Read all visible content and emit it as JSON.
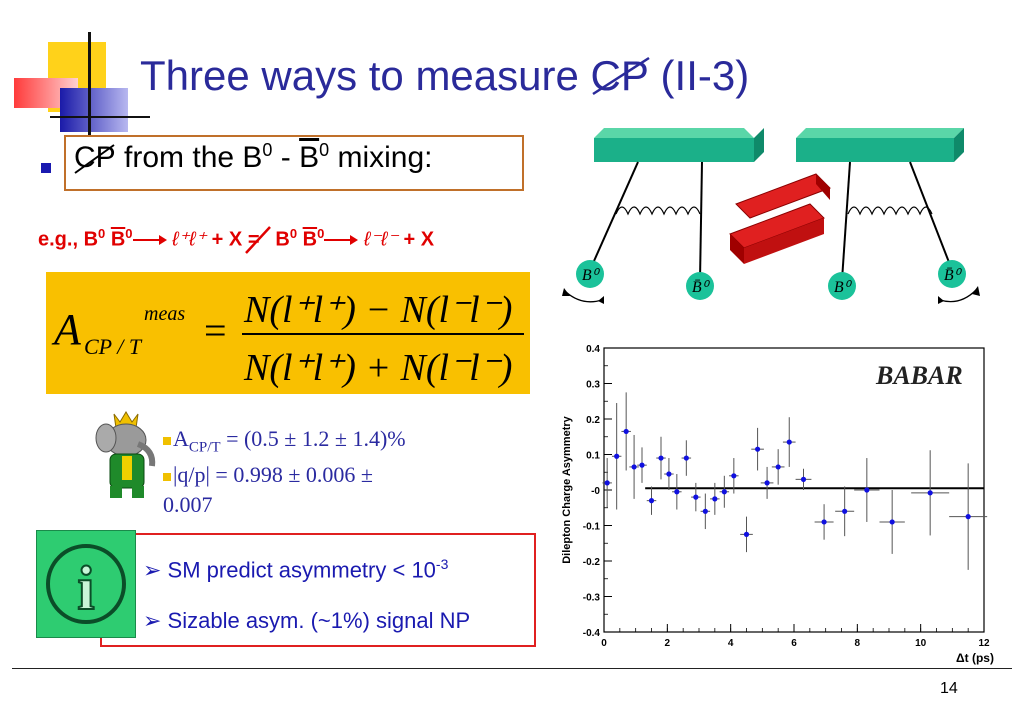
{
  "slide": {
    "title_prefix": "Three ways to measure ",
    "title_cp": "CP",
    "title_suffix": " (II-3)",
    "page_number": "14"
  },
  "mixing": {
    "cp": "CP",
    "text1": " from the B",
    "sup0a": "0",
    "dash": " - ",
    "bbar": "B",
    "sup0b": "0",
    "text2": " mixing:"
  },
  "example": {
    "eg": "e.g., ",
    "b0": "B",
    "b0bar": "B",
    "sup": "0",
    "ll_plus": "ℓ⁺ℓ⁺",
    "plus_x": " + X ",
    "ll_minus": "ℓ⁻ℓ⁻",
    "plus_x2": " + X"
  },
  "formula": {
    "A": "A",
    "sub": "CP / T",
    "sup": "meas",
    "eq": "=",
    "num": "N(l⁺l⁺) − N(l⁻l⁻)",
    "den": "N(l⁺l⁺) + N(l⁻l⁻)"
  },
  "results": {
    "r1_A": "A",
    "r1_sub": "CP/T",
    "r1_val": " = (0.5 ± 1.2 ± 1.4)%",
    "r2": "|q/p| = 0.998 ± 0.006 ±",
    "r3": "0.007"
  },
  "info": {
    "sm_text": "SM predict asymmetry < 10",
    "sm_sup": "-3",
    "np_text": "Sizable asym. (~1%) signal NP",
    "icon_letter": "i"
  },
  "diagram": {
    "labels": [
      "B⁰",
      "B̄⁰",
      "B⁰",
      "B̄⁰"
    ]
  },
  "chart_data": {
    "type": "scatter",
    "ylabel": "Dilepton Charge Asymmetry",
    "xlabel": "Δt (ps)",
    "logo": "BABAR",
    "xlim": [
      0,
      12
    ],
    "ylim": [
      -0.4,
      0.4
    ],
    "xticks": [
      "0",
      "2",
      "4",
      "6",
      "8",
      "10",
      "12"
    ],
    "yticks": [
      "0.4",
      "0.3",
      "0.2",
      "0.1",
      "-0",
      "-0.1",
      "-0.2",
      "-0.3",
      "-0.4"
    ],
    "fit_line": {
      "x": [
        1.3,
        12
      ],
      "y": [
        0.005,
        0.005
      ]
    },
    "points": [
      {
        "x": 0.1,
        "y": 0.02,
        "ey": 0.07
      },
      {
        "x": 0.4,
        "y": 0.095,
        "ey": 0.15
      },
      {
        "x": 0.7,
        "y": 0.165,
        "ey": 0.11
      },
      {
        "x": 0.95,
        "y": 0.065,
        "ey": 0.09
      },
      {
        "x": 1.2,
        "y": 0.07,
        "ey": 0.05
      },
      {
        "x": 1.5,
        "y": -0.03,
        "ey": 0.04
      },
      {
        "x": 1.8,
        "y": 0.09,
        "ey": 0.06
      },
      {
        "x": 2.05,
        "y": 0.045,
        "ey": 0.045
      },
      {
        "x": 2.3,
        "y": -0.005,
        "ey": 0.05
      },
      {
        "x": 2.6,
        "y": 0.09,
        "ey": 0.05
      },
      {
        "x": 2.9,
        "y": -0.02,
        "ey": 0.04
      },
      {
        "x": 3.2,
        "y": -0.06,
        "ey": 0.05
      },
      {
        "x": 3.5,
        "y": -0.025,
        "ey": 0.045
      },
      {
        "x": 3.8,
        "y": -0.005,
        "ey": 0.045
      },
      {
        "x": 4.1,
        "y": 0.04,
        "ey": 0.05
      },
      {
        "x": 4.5,
        "y": -0.125,
        "ey": 0.05
      },
      {
        "x": 4.85,
        "y": 0.115,
        "ey": 0.06
      },
      {
        "x": 5.15,
        "y": 0.02,
        "ey": 0.045
      },
      {
        "x": 5.5,
        "y": 0.065,
        "ey": 0.05
      },
      {
        "x": 5.85,
        "y": 0.135,
        "ey": 0.07
      },
      {
        "x": 6.3,
        "y": 0.03,
        "ey": 0.03
      },
      {
        "x": 6.95,
        "y": -0.09,
        "ey": 0.05
      },
      {
        "x": 7.6,
        "y": -0.06,
        "ey": 0.07
      },
      {
        "x": 8.3,
        "y": 0.0,
        "ey": 0.09
      },
      {
        "x": 9.1,
        "y": -0.09,
        "ey": 0.09
      },
      {
        "x": 10.3,
        "y": -0.008,
        "ey": 0.12
      },
      {
        "x": 11.5,
        "y": -0.075,
        "ey": 0.15
      }
    ],
    "xerr": [
      0.15,
      0.15,
      0.15,
      0.15,
      0.15,
      0.15,
      0.15,
      0.15,
      0.15,
      0.15,
      0.15,
      0.15,
      0.15,
      0.15,
      0.15,
      0.2,
      0.2,
      0.2,
      0.2,
      0.2,
      0.25,
      0.3,
      0.3,
      0.4,
      0.4,
      0.6,
      0.6
    ]
  }
}
